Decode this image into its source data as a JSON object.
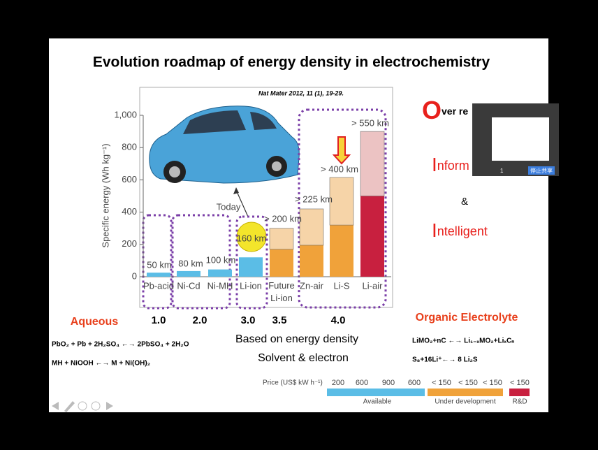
{
  "slide": {
    "title": "Evolution roadmap of energy density in electrochemistry",
    "aqueous": {
      "heading": "Aqueous",
      "equations": [
        "PbO₂ + Pb + 2H₂SO₄ ←→ 2PbSO₄ + 2H₂O",
        "MH + NiOOH ←→ M + Ni(OH)₂"
      ]
    },
    "center_notes": [
      "Based on energy density",
      "Solvent & electron"
    ],
    "organic": {
      "heading": "Organic Electrolyte",
      "equations": [
        "LiMO₂+nC ←→ Li₁₋ₓMO₂+LiₓCₙ",
        "S₈+16Li⁺←→ 8 Li₂S"
      ]
    },
    "keywords": [
      {
        "initial": "O",
        "rest": "ver re"
      },
      {
        "initial": "I",
        "rest": "nform"
      },
      {
        "initial": "&",
        "rest": ""
      },
      {
        "initial": "I",
        "rest": "ntelligent"
      }
    ],
    "generations": [
      "1.0",
      "2.0",
      "3.0",
      "3.5",
      "4.0"
    ],
    "price": {
      "label": "Price (US$ kW h⁻¹)",
      "values": [
        "200",
        "600",
        "900",
        "600",
        "< 150",
        "< 150",
        "< 150",
        "< 150"
      ],
      "bands": [
        "Available",
        "Under development",
        "R&D"
      ]
    }
  },
  "share_popup": {
    "page": "1",
    "button": "停止共享"
  },
  "chart_data": {
    "type": "bar",
    "source": "Nat Mater 2012, 11 (1), 19-29.",
    "y_label": "Specific energy (Wh kg⁻¹)",
    "annotation": "Today",
    "categories": [
      "Pb-acid",
      "Ni-Cd",
      "Ni-MH",
      "Li-ion",
      "Future Li-ion",
      "Zn-air",
      "Li-S",
      "Li-air"
    ],
    "series": [
      {
        "values": [
          25,
          35,
          45,
          120,
          170,
          195,
          320,
          500
        ],
        "colors": [
          "#5bbde6",
          "#5bbde6",
          "#5bbde6",
          "#5bbde6",
          "#f0a23a",
          "#f0a23a",
          "#f0a23a",
          "#c8203f"
        ]
      },
      {
        "values": [
          null,
          null,
          null,
          null,
          130,
          225,
          295,
          400
        ],
        "colors": [
          null,
          null,
          null,
          null,
          "#f6d4a8",
          "#f6d4a8",
          "#f6d4a8",
          "#ecc3c3"
        ]
      }
    ],
    "range_labels": [
      "50 km",
      "80 km",
      "100 km",
      "160 km",
      "> 200 km",
      "> 225 km",
      "> 400 km",
      "> 550 km"
    ],
    "ylim": [
      0,
      1000
    ],
    "yticks": [
      0,
      200,
      400,
      600,
      800,
      {
        "value": 1000,
        "label": "1,000"
      }
    ],
    "stacked": true
  }
}
